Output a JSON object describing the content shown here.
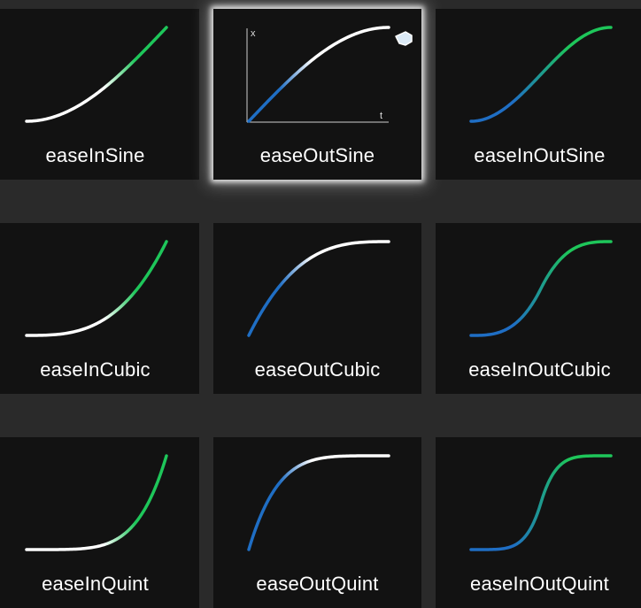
{
  "colors": {
    "background": "#2a2a2a",
    "card": "#121212",
    "blue": "#1f6ec4",
    "white": "#ffffff",
    "green": "#1ec65a",
    "selection_glow": "#ffffff"
  },
  "selected_index": 1,
  "axes": {
    "x_label": "x",
    "t_label": "t"
  },
  "curves": [
    {
      "label": "easeInSine",
      "fn": "inSine",
      "grad": "in"
    },
    {
      "label": "easeOutSine",
      "fn": "outSine",
      "grad": "out"
    },
    {
      "label": "easeInOutSine",
      "fn": "inOutSine",
      "grad": "inout"
    },
    {
      "label": "easeInCubic",
      "fn": "inCubic",
      "grad": "in"
    },
    {
      "label": "easeOutCubic",
      "fn": "outCubic",
      "grad": "out"
    },
    {
      "label": "easeInOutCubic",
      "fn": "inOutCubic",
      "grad": "inout"
    },
    {
      "label": "easeInQuint",
      "fn": "inQuint",
      "grad": "in"
    },
    {
      "label": "easeOutQuint",
      "fn": "outQuint",
      "grad": "out"
    },
    {
      "label": "easeInOutQuint",
      "fn": "inOutQuint",
      "grad": "inout"
    }
  ]
}
